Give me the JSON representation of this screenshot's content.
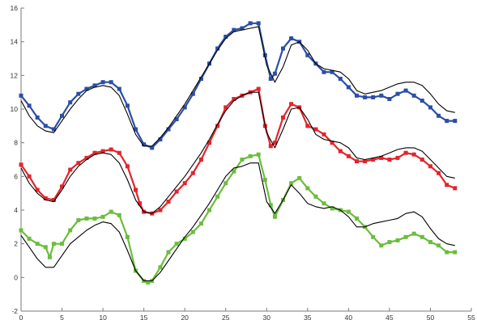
{
  "chart_data": {
    "type": "line",
    "title": "",
    "xlabel": "",
    "ylabel": "",
    "xlim": [
      0,
      55
    ],
    "ylim": [
      -2,
      16
    ],
    "xticks": [
      0,
      5,
      10,
      15,
      20,
      25,
      30,
      35,
      40,
      45,
      50,
      55
    ],
    "yticks": [
      -2,
      0,
      2,
      4,
      6,
      8,
      10,
      12,
      14,
      16
    ],
    "xtick_labels": [
      "0",
      "5",
      "10",
      "15",
      "20",
      "25",
      "30",
      "35",
      "40",
      "45",
      "50",
      "55"
    ],
    "ytick_labels": [
      "-2",
      "0",
      "2",
      "4",
      "6",
      "8",
      "10",
      "12",
      "14",
      "16"
    ],
    "grid": false,
    "legend": "none",
    "colors": {
      "blue": "#2b4ea6",
      "red": "#e3242b",
      "green": "#6cbd3c",
      "black": "#000000"
    },
    "series": [
      {
        "color": "#2b4ea6",
        "marker": "square",
        "x": [
          0,
          1,
          2,
          3,
          4,
          5,
          6,
          7,
          8,
          9,
          10,
          11,
          12,
          13,
          14,
          15,
          16,
          17,
          18,
          19,
          20,
          21,
          22,
          23,
          24,
          25,
          26,
          27,
          28,
          29,
          29.8,
          30.5,
          31,
          32,
          33,
          34,
          35,
          36,
          37,
          38,
          39,
          40,
          41,
          42,
          43,
          44,
          45,
          46,
          47,
          48,
          49,
          50,
          51,
          52,
          53
        ],
        "y": [
          10.8,
          10.2,
          9.5,
          9.0,
          8.8,
          9.6,
          10.4,
          10.9,
          11.2,
          11.4,
          11.6,
          11.6,
          11.2,
          10.2,
          8.8,
          7.9,
          7.7,
          8.2,
          8.8,
          9.4,
          10.1,
          10.9,
          11.8,
          12.7,
          13.6,
          14.3,
          14.7,
          14.8,
          15.1,
          15.1,
          13.2,
          11.8,
          12.1,
          13.6,
          14.2,
          14.0,
          13.2,
          12.7,
          12.2,
          12.2,
          11.8,
          11.3,
          10.8,
          10.7,
          10.7,
          10.8,
          10.6,
          10.9,
          11.1,
          10.8,
          10.5,
          10.1,
          9.6,
          9.3,
          9.3
        ]
      },
      {
        "color": "#000000",
        "marker": "none",
        "x": [
          0,
          1,
          2,
          3,
          4,
          5,
          6,
          7,
          8,
          9,
          10,
          11,
          12,
          13,
          14,
          15,
          16,
          17,
          18,
          19,
          20,
          21,
          22,
          23,
          24,
          25,
          26,
          27,
          28,
          29,
          30,
          31,
          32,
          33,
          34,
          35,
          36,
          37,
          38,
          39,
          40,
          41,
          42,
          43,
          44,
          45,
          46,
          47,
          48,
          49,
          50,
          51,
          52,
          53
        ],
        "y": [
          10.5,
          9.6,
          9.0,
          8.7,
          8.6,
          9.3,
          10.0,
          10.6,
          11.1,
          11.3,
          11.4,
          11.3,
          10.8,
          9.7,
          8.5,
          7.8,
          7.8,
          8.3,
          8.9,
          9.6,
          10.3,
          11.1,
          11.9,
          12.7,
          13.5,
          14.2,
          14.6,
          14.7,
          14.8,
          14.9,
          12.6,
          11.6,
          12.5,
          13.8,
          14.0,
          13.5,
          12.7,
          12.4,
          12.3,
          12.2,
          11.8,
          11.1,
          10.9,
          11.0,
          11.1,
          11.3,
          11.5,
          11.6,
          11.6,
          11.4,
          10.9,
          10.3,
          9.9,
          9.8
        ]
      },
      {
        "color": "#e3242b",
        "marker": "square",
        "x": [
          0,
          1,
          2,
          3,
          4,
          5,
          6,
          7,
          8,
          9,
          10,
          11,
          12,
          13,
          14,
          14.5,
          15,
          16,
          17,
          18,
          19,
          20,
          21,
          22,
          23,
          24,
          25,
          26,
          27,
          28,
          29,
          29.8,
          30.5,
          31,
          32,
          33,
          34,
          35,
          36,
          37,
          38,
          39,
          40,
          41,
          42,
          43,
          44,
          45,
          46,
          47,
          48,
          49,
          50,
          51,
          52,
          53
        ],
        "y": [
          6.7,
          6.0,
          5.2,
          4.7,
          4.6,
          5.4,
          6.4,
          6.8,
          7.1,
          7.4,
          7.5,
          7.6,
          7.4,
          6.6,
          5.2,
          4.4,
          3.9,
          3.8,
          4.0,
          4.5,
          5.1,
          5.6,
          6.2,
          7.0,
          8.0,
          9.0,
          10.1,
          10.6,
          10.8,
          11.0,
          11.2,
          9.0,
          7.8,
          8.0,
          9.5,
          10.3,
          10.1,
          9.0,
          8.8,
          8.5,
          8.0,
          7.5,
          7.2,
          6.9,
          6.9,
          7.0,
          7.1,
          7.0,
          7.1,
          7.4,
          7.3,
          7.0,
          6.6,
          6.2,
          5.5,
          5.3
        ]
      },
      {
        "color": "#000000",
        "marker": "none",
        "x": [
          0,
          1,
          2,
          3,
          4,
          5,
          6,
          7,
          8,
          9,
          10,
          11,
          12,
          13,
          14,
          15,
          16,
          17,
          18,
          19,
          20,
          21,
          22,
          23,
          24,
          25,
          26,
          27,
          28,
          29,
          30,
          31,
          32,
          33,
          34,
          35,
          36,
          37,
          38,
          39,
          40,
          41,
          42,
          43,
          44,
          45,
          46,
          47,
          48,
          49,
          50,
          51,
          52,
          53
        ],
        "y": [
          6.5,
          5.6,
          5.0,
          4.6,
          4.5,
          5.2,
          6.0,
          6.6,
          7.0,
          7.3,
          7.4,
          7.3,
          6.8,
          5.8,
          4.6,
          3.9,
          3.8,
          4.2,
          4.8,
          5.4,
          6.0,
          6.7,
          7.4,
          8.2,
          9.1,
          9.9,
          10.5,
          10.8,
          11.0,
          11.0,
          8.6,
          7.7,
          8.8,
          10.0,
          10.1,
          9.4,
          8.5,
          8.2,
          8.1,
          8.0,
          7.7,
          7.1,
          7.0,
          7.1,
          7.2,
          7.4,
          7.6,
          7.7,
          7.7,
          7.5,
          7.0,
          6.5,
          6.0,
          5.9
        ]
      },
      {
        "color": "#6cbd3c",
        "marker": "square",
        "x": [
          0,
          1,
          2,
          3,
          3.5,
          4,
          5,
          6,
          7,
          8,
          9,
          10,
          11,
          12,
          13,
          14,
          15,
          15.5,
          16,
          17,
          18,
          19,
          20,
          21,
          22,
          23,
          24,
          25,
          26,
          27,
          28,
          29,
          29.8,
          30.5,
          31,
          32,
          33,
          34,
          35,
          36,
          37,
          38,
          39,
          40,
          41,
          42,
          43,
          44,
          45,
          46,
          47,
          48,
          49,
          50,
          51,
          52,
          53
        ],
        "y": [
          2.8,
          2.3,
          2.0,
          1.8,
          1.2,
          2.0,
          2.0,
          2.8,
          3.4,
          3.5,
          3.5,
          3.6,
          3.9,
          3.7,
          2.4,
          0.4,
          -0.2,
          -0.3,
          -0.2,
          0.6,
          1.5,
          2.0,
          2.3,
          2.7,
          3.2,
          4.0,
          4.8,
          5.6,
          6.3,
          7.0,
          7.2,
          7.3,
          5.8,
          4.3,
          3.6,
          4.6,
          5.6,
          5.9,
          5.3,
          4.8,
          4.4,
          4.1,
          4.0,
          3.9,
          3.5,
          3.0,
          2.4,
          1.9,
          2.1,
          2.2,
          2.4,
          2.6,
          2.4,
          2.1,
          1.9,
          1.5,
          1.5
        ]
      },
      {
        "color": "#000000",
        "marker": "none",
        "x": [
          0,
          1,
          2,
          3,
          4,
          5,
          6,
          7,
          8,
          9,
          10,
          11,
          12,
          13,
          14,
          15,
          16,
          17,
          18,
          19,
          20,
          21,
          22,
          23,
          24,
          25,
          26,
          27,
          28,
          29,
          30,
          31,
          32,
          33,
          34,
          35,
          36,
          37,
          38,
          39,
          40,
          41,
          42,
          43,
          44,
          45,
          46,
          47,
          48,
          49,
          50,
          51,
          52,
          53
        ],
        "y": [
          2.5,
          1.8,
          1.1,
          0.6,
          0.6,
          1.3,
          2.0,
          2.4,
          2.8,
          3.1,
          3.3,
          3.2,
          2.7,
          1.6,
          0.4,
          -0.2,
          -0.2,
          0.3,
          1.0,
          1.7,
          2.4,
          3.0,
          3.7,
          4.4,
          5.2,
          6.0,
          6.5,
          6.6,
          6.8,
          6.8,
          4.5,
          3.8,
          4.6,
          5.5,
          5.0,
          4.4,
          4.2,
          4.1,
          4.2,
          4.0,
          3.6,
          3.0,
          3.0,
          3.2,
          3.3,
          3.4,
          3.5,
          3.8,
          3.9,
          3.6,
          2.9,
          2.3,
          2.0,
          1.9
        ]
      }
    ]
  }
}
